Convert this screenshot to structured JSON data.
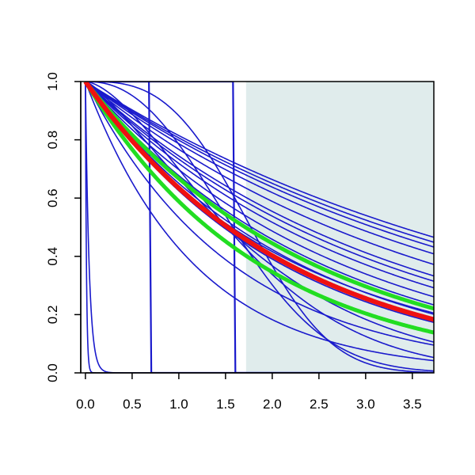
{
  "chart_data": {
    "type": "line",
    "title": "",
    "xlabel": "",
    "ylabel": "",
    "xlim": [
      -0.05,
      3.73
    ],
    "ylim": [
      0,
      1
    ],
    "x_ticks": [
      "0.0",
      "0.5",
      "1.0",
      "1.5",
      "2.0",
      "2.5",
      "3.0",
      "3.5"
    ],
    "y_ticks": [
      "0.0",
      "0.2",
      "0.4",
      "0.6",
      "0.8",
      "1.0"
    ],
    "grid": false,
    "legend": "none",
    "shaded_region": {
      "x_start": 1.72,
      "x_end": 3.73,
      "color": "#e0ecec"
    },
    "colors": {
      "lines": "#1a1acc",
      "highlight": "#ee1111",
      "band": "#22dd22",
      "axis": "#000000"
    },
    "series": [
      {
        "family": "exp",
        "rate": 0.205,
        "color": "#1a1acc",
        "width": 1.6
      },
      {
        "family": "exp",
        "rate": 0.215,
        "color": "#1a1acc",
        "width": 1.6
      },
      {
        "family": "exp",
        "rate": 0.225,
        "color": "#1a1acc",
        "width": 1.6
      },
      {
        "family": "exp",
        "rate": 0.24,
        "color": "#1a1acc",
        "width": 1.6
      },
      {
        "family": "exp",
        "rate": 0.265,
        "color": "#1a1acc",
        "width": 1.6
      },
      {
        "family": "exp",
        "rate": 0.295,
        "color": "#1a1acc",
        "width": 1.6
      },
      {
        "family": "exp",
        "rate": 0.31,
        "color": "#1a1acc",
        "width": 1.6
      },
      {
        "family": "exp",
        "rate": 0.33,
        "color": "#1a1acc",
        "width": 1.6
      },
      {
        "family": "exp",
        "rate": 0.36,
        "color": "#1a1acc",
        "width": 1.6
      },
      {
        "family": "exp",
        "rate": 0.39,
        "color": "#1a1acc",
        "width": 1.6
      },
      {
        "family": "exp",
        "rate": 0.43,
        "color": "#1a1acc",
        "width": 1.6
      },
      {
        "family": "exp",
        "rate": 0.47,
        "color": "#1a1acc",
        "width": 1.6
      },
      {
        "family": "exp",
        "rate": 0.63,
        "color": "#1a1acc",
        "width": 1.6
      },
      {
        "family": "exp",
        "rate": 0.85,
        "color": "#1a1acc",
        "width": 1.6
      },
      {
        "family": "weibull",
        "scale": 2.0,
        "shape": 1.3,
        "color": "#1a1acc",
        "width": 1.6
      },
      {
        "family": "weibull",
        "scale": 1.9,
        "shape": 1.6,
        "color": "#1a1acc",
        "width": 1.6
      },
      {
        "family": "weibull",
        "scale": 1.85,
        "shape": 2.3,
        "color": "#1a1acc",
        "width": 1.6
      },
      {
        "family": "weibull",
        "scale": 2.0,
        "shape": 3.0,
        "color": "#1a1acc",
        "width": 1.6
      },
      {
        "family": "weibull",
        "scale": 2.3,
        "shape": 0.95,
        "color": "#1a1acc",
        "width": 1.6
      },
      {
        "family": "step",
        "at": 0.68,
        "color": "#1a1acc",
        "width": 2.2
      },
      {
        "family": "step",
        "at": 1.58,
        "color": "#1a1acc",
        "width": 2.2
      },
      {
        "family": "exp",
        "rate": 90,
        "color": "#1a1acc",
        "width": 1.6
      },
      {
        "family": "exp",
        "rate": 25,
        "color": "#1a1acc",
        "width": 1.6
      },
      {
        "family": "exp",
        "rate": 0.405,
        "color": "#22dd22",
        "width": 5
      },
      {
        "family": "exp",
        "rate": 0.53,
        "color": "#22dd22",
        "width": 5
      },
      {
        "family": "exp",
        "rate": 0.455,
        "color": "#ee1111",
        "width": 6
      }
    ]
  }
}
